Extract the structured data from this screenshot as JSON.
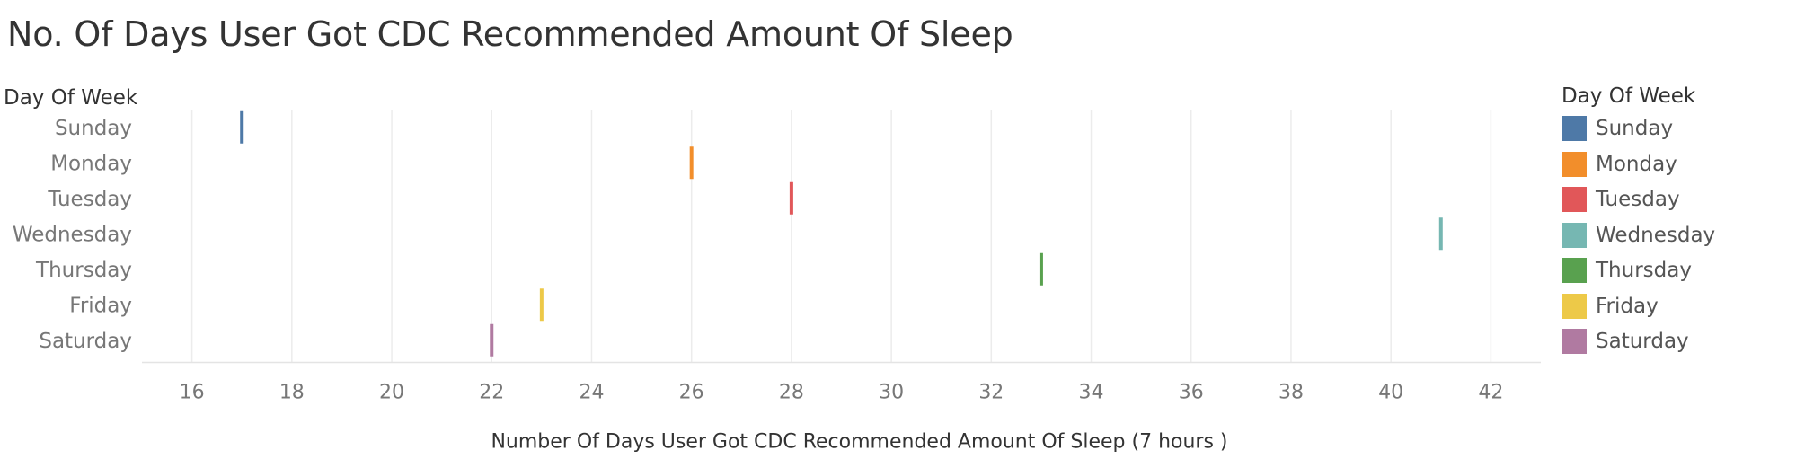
{
  "chart_data": {
    "type": "gantt",
    "title": "No. Of Days User Got CDC Recommended Amount Of Sleep",
    "row_header": "Day Of Week",
    "xlabel": "Number Of Days User Got CDC Recommended Amount Of Sleep (7 hours )",
    "xlim": [
      15,
      43
    ],
    "xticks": [
      16,
      18,
      20,
      22,
      24,
      26,
      28,
      30,
      32,
      34,
      36,
      38,
      40,
      42
    ],
    "grid": "vertical",
    "legend_title": "Day Of Week",
    "legend_position": "right",
    "categories": [
      "Sunday",
      "Monday",
      "Tuesday",
      "Wednesday",
      "Thursday",
      "Friday",
      "Saturday"
    ],
    "values": [
      17,
      26,
      28,
      41,
      33,
      23,
      22
    ],
    "colors": [
      "#4e79a7",
      "#f28e2b",
      "#e15759",
      "#76b7b2",
      "#59a14f",
      "#edc948",
      "#b07aa1"
    ]
  }
}
